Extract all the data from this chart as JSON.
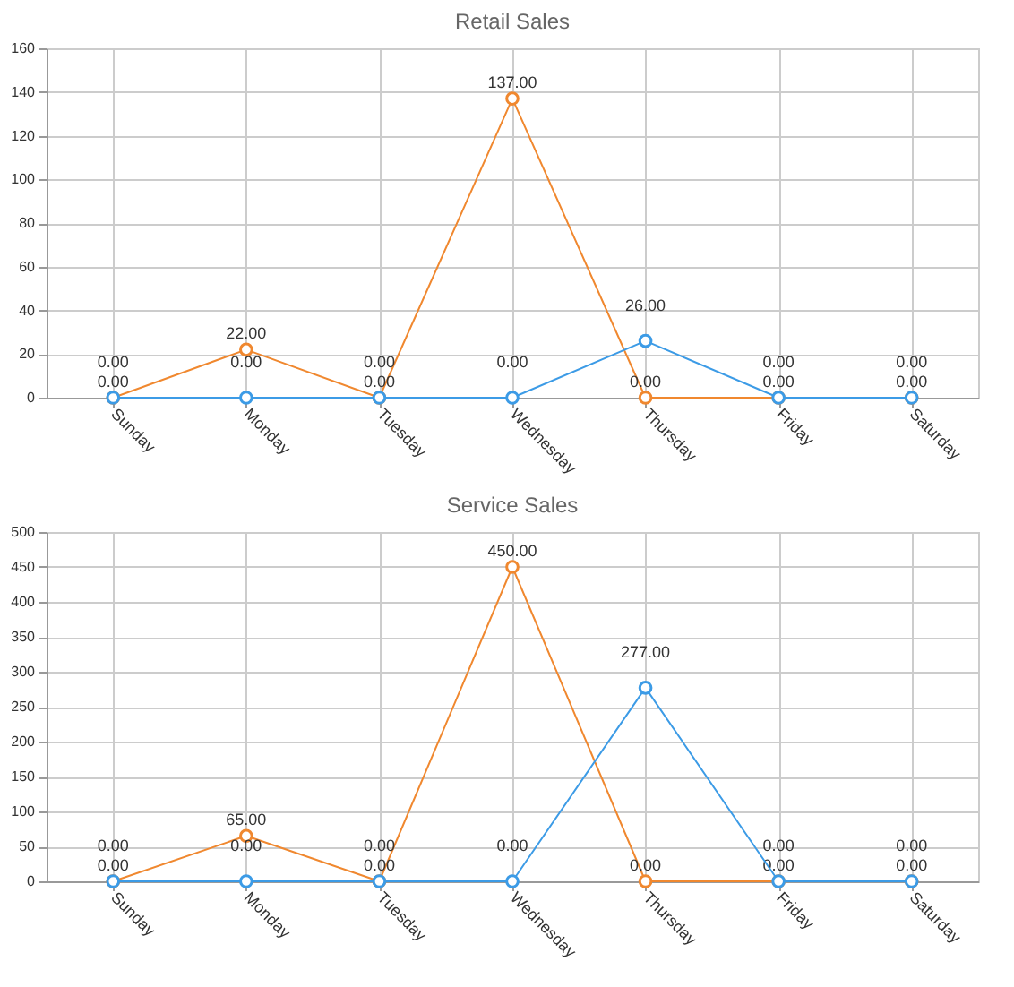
{
  "chart_data": [
    {
      "type": "line",
      "title": "Retail Sales",
      "categories": [
        "Sunday",
        "Monday",
        "Tuesday",
        "Wednesday",
        "Thursday",
        "Friday",
        "Saturday"
      ],
      "series": [
        {
          "color": "#f0882f",
          "values": [
            0,
            22,
            0,
            137,
            0,
            0,
            0
          ],
          "value_labels": [
            "0.00",
            "22.00",
            "0.00",
            "137.00",
            "0.00",
            "0.00",
            "0.00"
          ]
        },
        {
          "color": "#3c9be6",
          "values": [
            0,
            0,
            0,
            0,
            26,
            0,
            0
          ],
          "value_labels": [
            "0.00",
            "0.00",
            "0.00",
            "0.00",
            "26.00",
            "0.00",
            "0.00"
          ]
        }
      ],
      "ylim": [
        0,
        160
      ],
      "yticks": [
        0,
        20,
        40,
        60,
        80,
        100,
        120,
        140,
        160
      ],
      "grid": true,
      "marker": "circle"
    },
    {
      "type": "line",
      "title": "Service Sales",
      "categories": [
        "Sunday",
        "Monday",
        "Tuesday",
        "Wednesday",
        "Thursday",
        "Friday",
        "Saturday"
      ],
      "series": [
        {
          "color": "#f0882f",
          "values": [
            0,
            65,
            0,
            450,
            0,
            0,
            0
          ],
          "value_labels": [
            "0.00",
            "65.00",
            "0.00",
            "450.00",
            "0.00",
            "0.00",
            "0.00"
          ]
        },
        {
          "color": "#3c9be6",
          "values": [
            0,
            0,
            0,
            0,
            277,
            0,
            0
          ],
          "value_labels": [
            "0.00",
            "0.00",
            "0.00",
            "0.00",
            "277.00",
            "0.00",
            "0.00"
          ]
        }
      ],
      "ylim": [
        0,
        500
      ],
      "yticks": [
        0,
        50,
        100,
        150,
        200,
        250,
        300,
        350,
        400,
        450,
        500
      ],
      "grid": true,
      "marker": "circle"
    }
  ]
}
